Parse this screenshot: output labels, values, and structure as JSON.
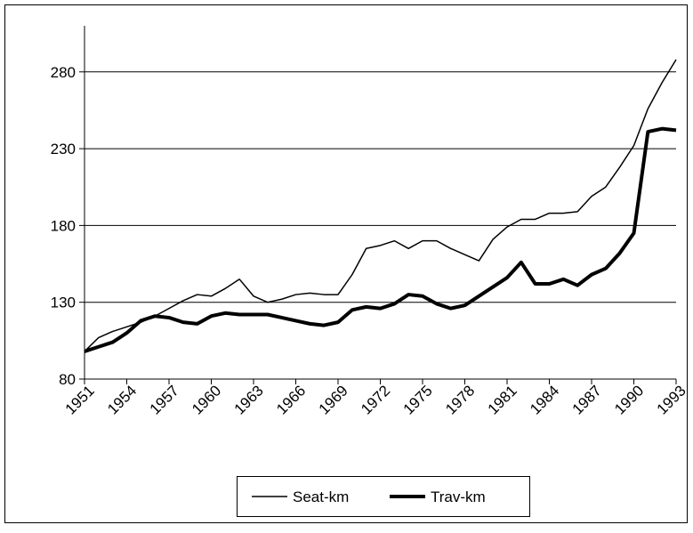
{
  "chart_data": {
    "type": "line",
    "x": [
      1951,
      1952,
      1953,
      1954,
      1955,
      1956,
      1957,
      1958,
      1959,
      1960,
      1961,
      1962,
      1963,
      1964,
      1965,
      1966,
      1967,
      1968,
      1969,
      1970,
      1971,
      1972,
      1973,
      1974,
      1975,
      1976,
      1977,
      1978,
      1979,
      1980,
      1981,
      1982,
      1983,
      1984,
      1985,
      1986,
      1987,
      1988,
      1989,
      1990,
      1991,
      1992,
      1993
    ],
    "xlim": [
      1951,
      1993
    ],
    "xticks": [
      1951,
      1954,
      1957,
      1960,
      1963,
      1966,
      1969,
      1972,
      1975,
      1978,
      1981,
      1984,
      1987,
      1990,
      1993
    ],
    "ylim": [
      80,
      310
    ],
    "yticks": [
      80,
      130,
      180,
      230,
      280
    ],
    "grid": true,
    "legend": "bottom",
    "series": [
      {
        "name": "Seat-km",
        "color": "#000000",
        "width": 1.5,
        "values": [
          98,
          107,
          111,
          114,
          117,
          121,
          126,
          131,
          135,
          134,
          139,
          145,
          134,
          130,
          132,
          135,
          136,
          135,
          135,
          148,
          165,
          167,
          170,
          165,
          170,
          170,
          165,
          161,
          157,
          171,
          179,
          184,
          184,
          188,
          188,
          189,
          199,
          205,
          218,
          232,
          256,
          273,
          288
        ]
      },
      {
        "name": "Trav-km",
        "color": "#000000",
        "width": 4,
        "values": [
          98,
          101,
          104,
          110,
          118,
          121,
          120,
          117,
          116,
          121,
          123,
          122,
          122,
          122,
          120,
          118,
          116,
          115,
          117,
          125,
          127,
          126,
          129,
          135,
          134,
          129,
          126,
          128,
          134,
          140,
          146,
          156,
          142,
          142,
          145,
          141,
          148,
          152,
          162,
          175,
          241,
          243,
          242
        ]
      }
    ]
  }
}
